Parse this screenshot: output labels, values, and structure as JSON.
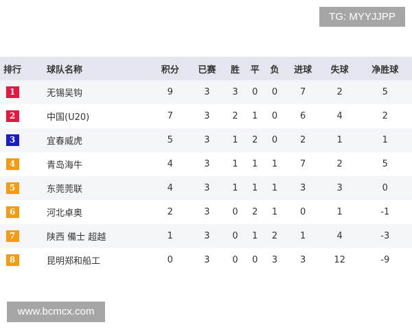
{
  "watermarks": {
    "top": "TG: MYYJJPP",
    "bottom": "www.bcmcx.com"
  },
  "colors": {
    "rank_red": "#e8173f",
    "rank_blue": "#1b1bc8",
    "rank_orange": "#f39c12",
    "header_bg": "#e3e6ee"
  },
  "headers": [
    "排行",
    "球队名称",
    "积分",
    "已赛",
    "胜",
    "平",
    "负",
    "进球",
    "失球",
    "净胜球"
  ],
  "rows": [
    {
      "rank": "1",
      "color": "#e8173f",
      "team": "无锡吴钩",
      "pts": "9",
      "played": "3",
      "w": "3",
      "d": "0",
      "l": "0",
      "gf": "7",
      "ga": "2",
      "gd": "5"
    },
    {
      "rank": "2",
      "color": "#e8173f",
      "team": "中国(U20)",
      "pts": "7",
      "played": "3",
      "w": "2",
      "d": "1",
      "l": "0",
      "gf": "6",
      "ga": "4",
      "gd": "2"
    },
    {
      "rank": "3",
      "color": "#1b1bc8",
      "team": "宜春威虎",
      "pts": "5",
      "played": "3",
      "w": "1",
      "d": "2",
      "l": "0",
      "gf": "2",
      "ga": "1",
      "gd": "1"
    },
    {
      "rank": "4",
      "color": "#f39c12",
      "team": "青岛海牛",
      "pts": "4",
      "played": "3",
      "w": "1",
      "d": "1",
      "l": "1",
      "gf": "7",
      "ga": "2",
      "gd": "5"
    },
    {
      "rank": "5",
      "color": "#f39c12",
      "team": "东莞莞联",
      "pts": "4",
      "played": "3",
      "w": "1",
      "d": "1",
      "l": "1",
      "gf": "3",
      "ga": "3",
      "gd": "0"
    },
    {
      "rank": "6",
      "color": "#f39c12",
      "team": "河北卓奥",
      "pts": "2",
      "played": "3",
      "w": "0",
      "d": "2",
      "l": "1",
      "gf": "0",
      "ga": "1",
      "gd": "-1"
    },
    {
      "rank": "7",
      "color": "#f39c12",
      "team": "陕西 備士 超越",
      "pts": "1",
      "played": "3",
      "w": "0",
      "d": "1",
      "l": "2",
      "gf": "1",
      "ga": "4",
      "gd": "-3"
    },
    {
      "rank": "8",
      "color": "#f39c12",
      "team": "昆明郑和船工",
      "pts": "0",
      "played": "3",
      "w": "0",
      "d": "0",
      "l": "3",
      "gf": "3",
      "ga": "12",
      "gd": "-9"
    }
  ]
}
